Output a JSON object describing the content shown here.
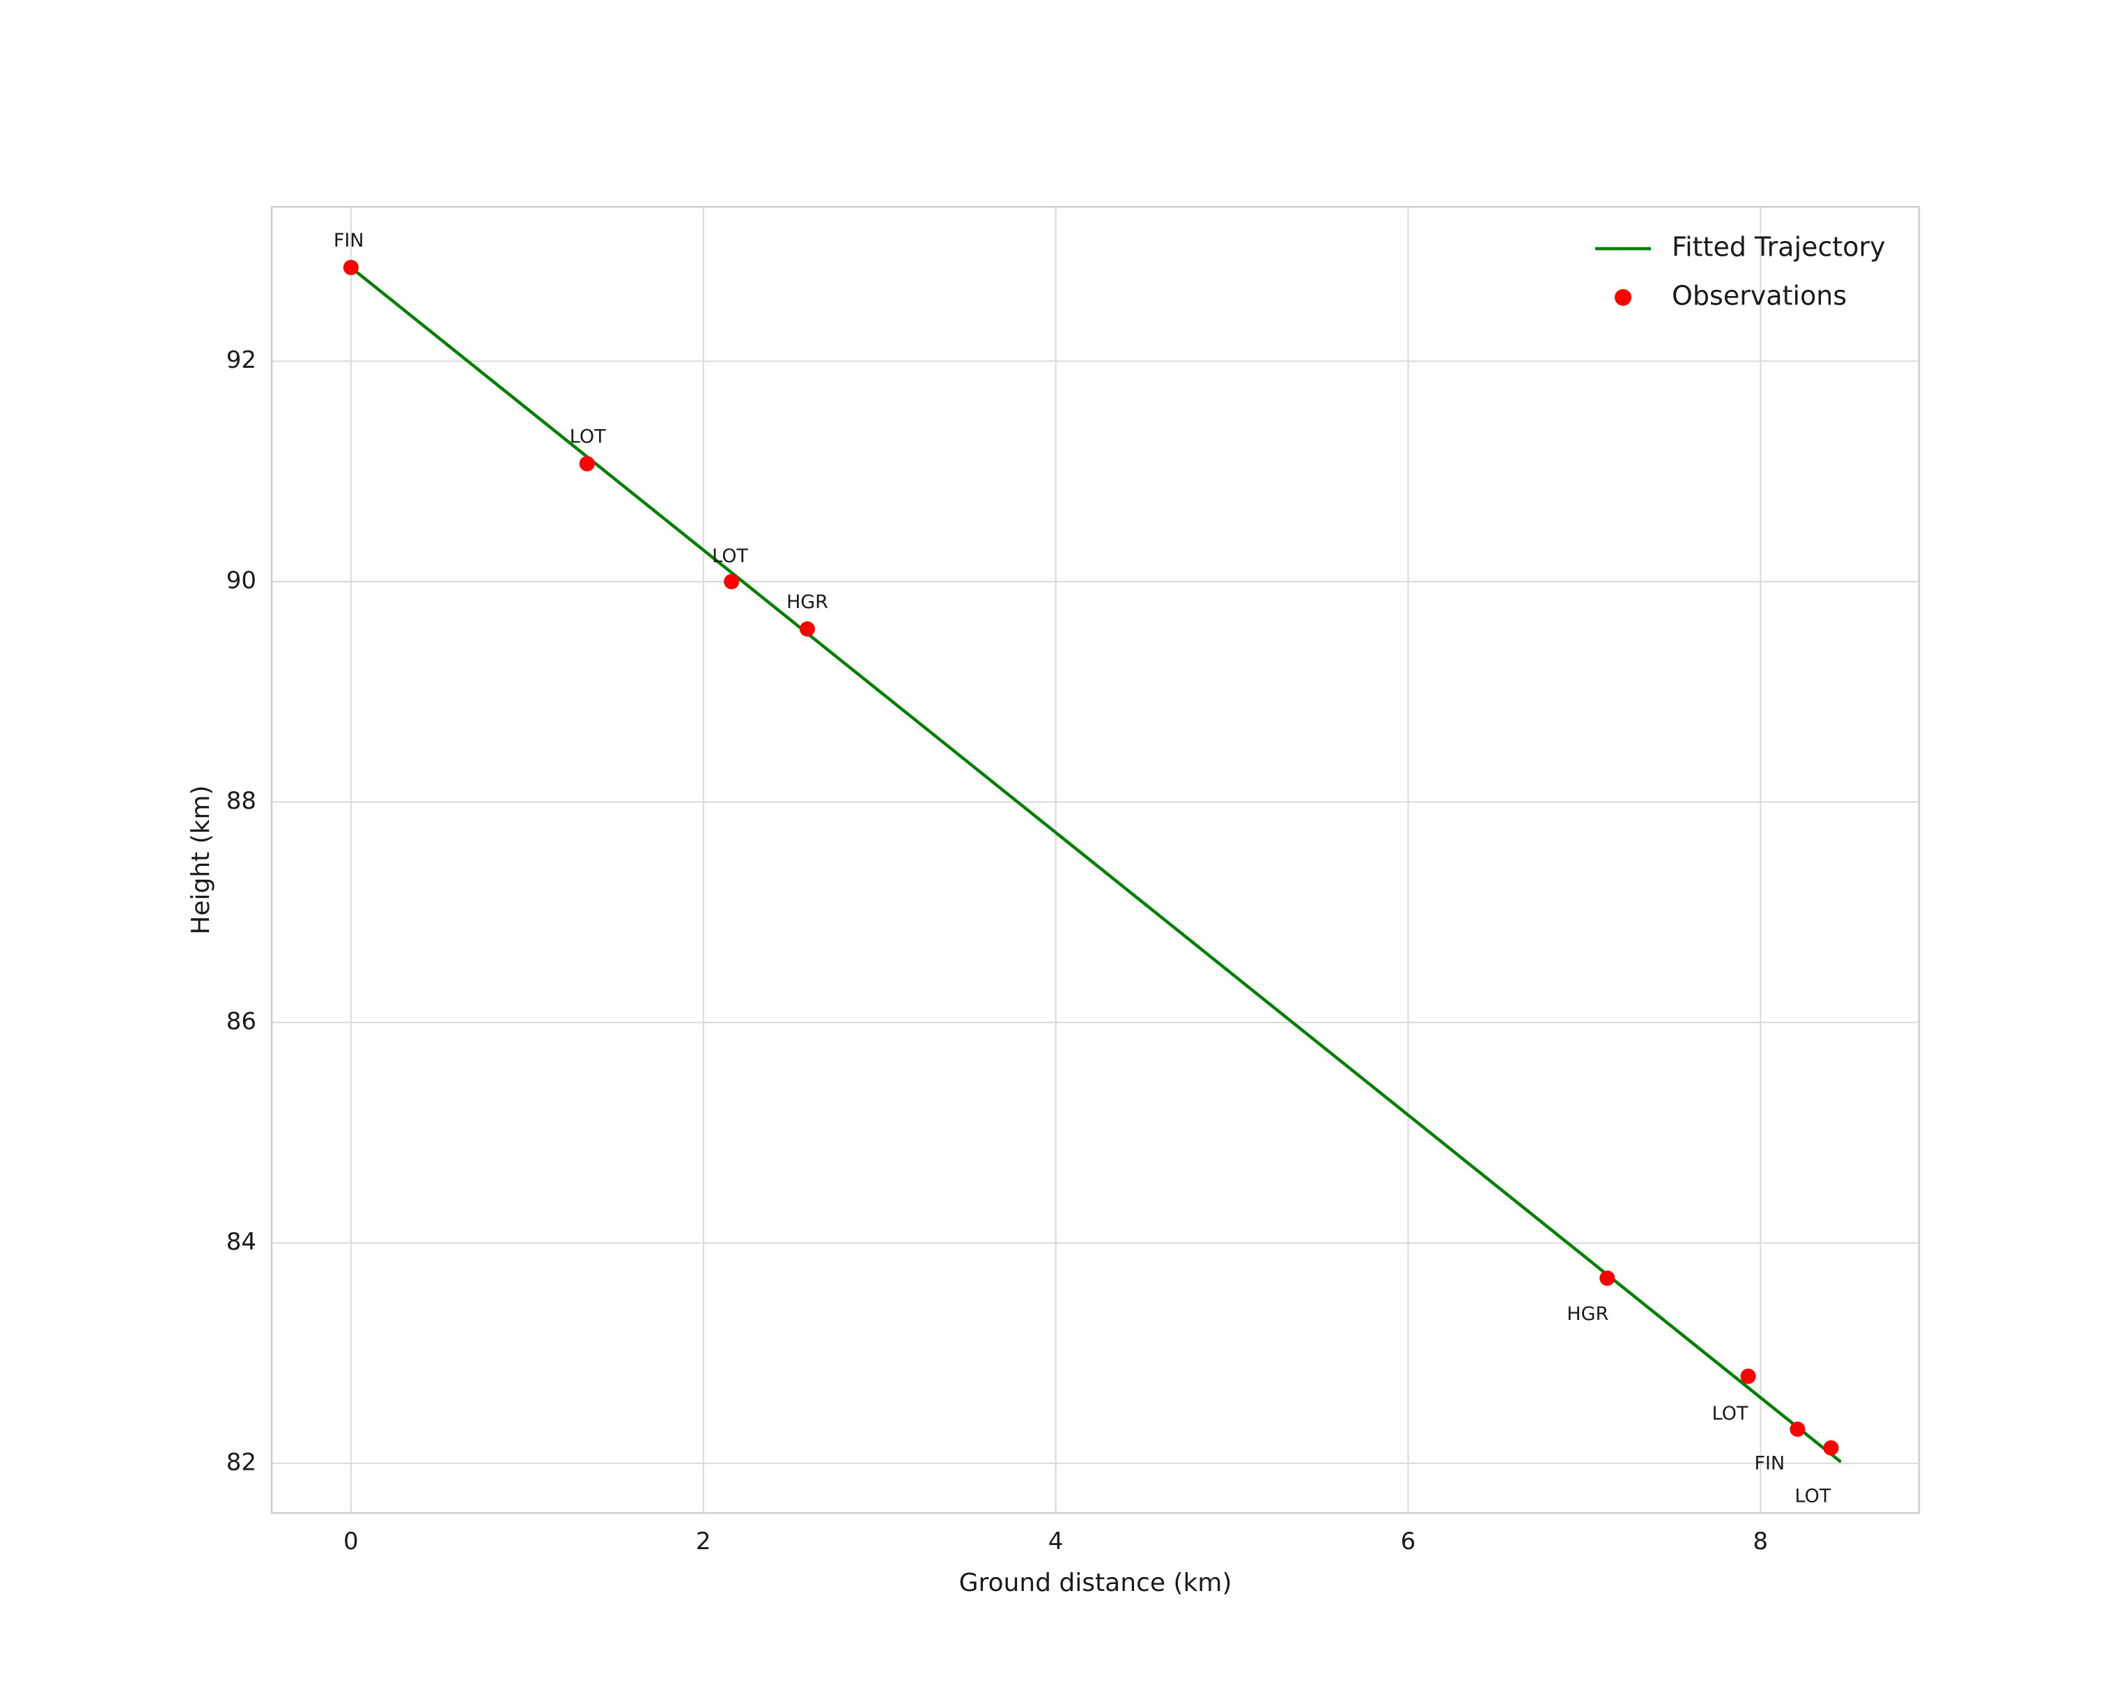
{
  "chart_data": {
    "type": "scatter",
    "title": "",
    "xlabel": "Ground distance (km)",
    "ylabel": "Height (km)",
    "xlim": [
      -0.45,
      8.9
    ],
    "ylim": [
      81.55,
      93.4
    ],
    "xticks": [
      0,
      2,
      4,
      6,
      8
    ],
    "yticks": [
      82,
      84,
      86,
      88,
      90,
      92
    ],
    "grid": true,
    "grid_color": "#d9d9d9",
    "frame_color": "#cccccc",
    "background": "#ffffff",
    "legend_position": "top-right",
    "series": [
      {
        "name": "Fitted Trajectory",
        "kind": "line",
        "color": "#008000",
        "x": [
          0.0,
          8.45
        ],
        "y": [
          92.85,
          82.02
        ]
      },
      {
        "name": "Observations",
        "kind": "scatter",
        "color": "#ff0000",
        "points": [
          {
            "x": 0.0,
            "y": 92.85,
            "label": "FIN",
            "label_dx": -25,
            "label_dy": -30
          },
          {
            "x": 1.34,
            "y": 91.07,
            "label": "LOT",
            "label_dx": -25,
            "label_dy": -30
          },
          {
            "x": 2.16,
            "y": 90.0,
            "label": "LOT",
            "label_dx": -28,
            "label_dy": -28
          },
          {
            "x": 2.59,
            "y": 89.57,
            "label": "HGR",
            "label_dx": -30,
            "label_dy": -30
          },
          {
            "x": 7.13,
            "y": 83.68,
            "label": "HGR",
            "label_dx": -58,
            "label_dy": 60
          },
          {
            "x": 7.93,
            "y": 82.79,
            "label": "LOT",
            "label_dx": -52,
            "label_dy": 62
          },
          {
            "x": 8.21,
            "y": 82.31,
            "label": "FIN",
            "label_dx": -62,
            "label_dy": 58
          },
          {
            "x": 8.4,
            "y": 82.14,
            "label": "LOT",
            "label_dx": -52,
            "label_dy": 78
          }
        ]
      }
    ]
  }
}
